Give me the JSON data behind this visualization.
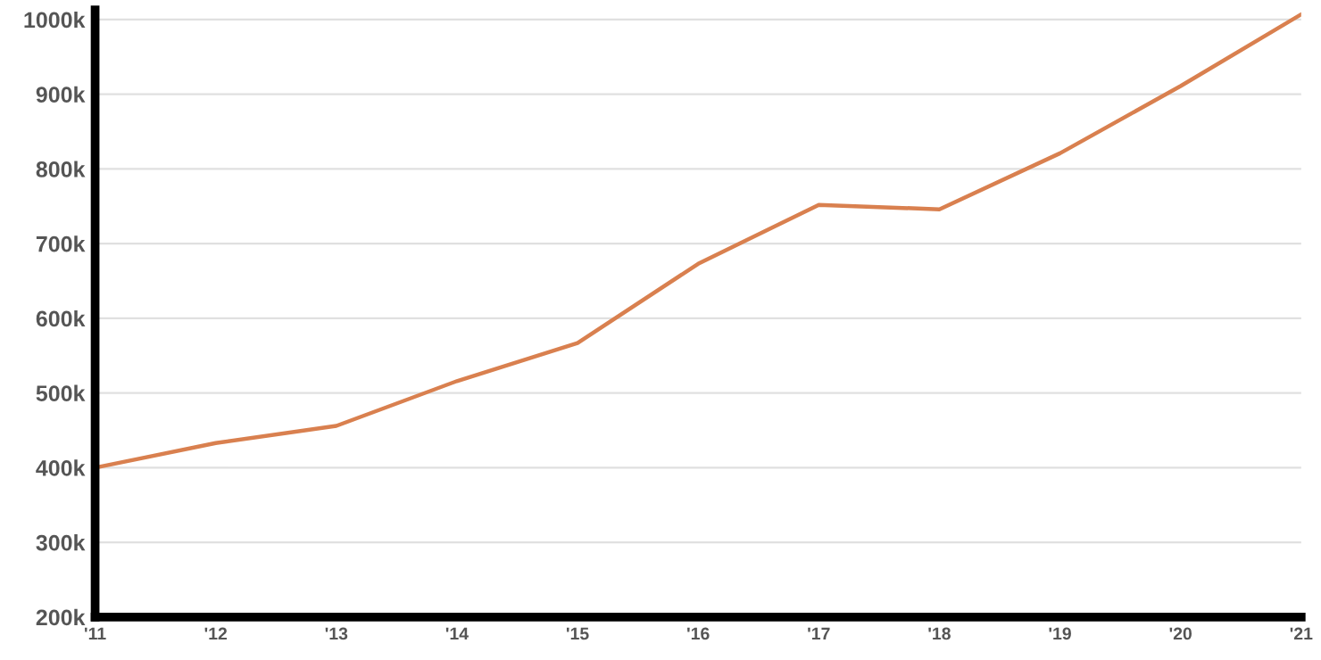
{
  "chart_data": {
    "type": "line",
    "categories": [
      "'11",
      "'12",
      "'13",
      "'14",
      "'15",
      "'16",
      "'17",
      "'18",
      "'19",
      "'20",
      "'21"
    ],
    "series": [
      {
        "color": "#d9804f",
        "values": [
          400000,
          433000,
          456000,
          516000,
          567000,
          673000,
          752000,
          746000,
          821000,
          911000,
          1007000
        ]
      }
    ],
    "ylim": [
      200000,
      1013000
    ],
    "yticks": [
      {
        "value": 200000,
        "label": "200k"
      },
      {
        "value": 300000,
        "label": "300k"
      },
      {
        "value": 400000,
        "label": "400k"
      },
      {
        "value": 500000,
        "label": "500k"
      },
      {
        "value": 600000,
        "label": "600k"
      },
      {
        "value": 700000,
        "label": "700k"
      },
      {
        "value": 800000,
        "label": "800k"
      },
      {
        "value": 900000,
        "label": "900k"
      },
      {
        "value": 1000000,
        "label": "1000k"
      }
    ],
    "grid": "y",
    "legend": false,
    "marker": "none",
    "line_style": "solid"
  }
}
